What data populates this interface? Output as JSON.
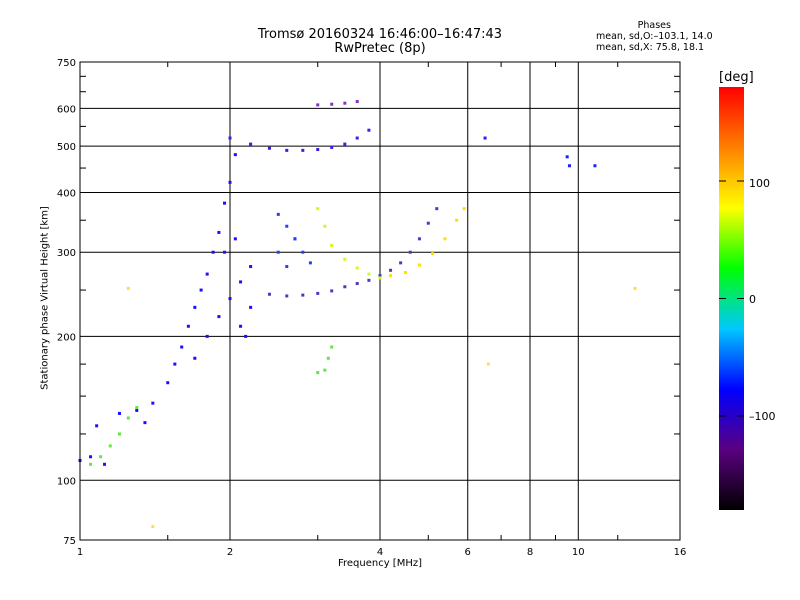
{
  "header": {
    "title_line1": "Tromsø 20160324 16:46:00–16:47:43",
    "title_line2": "RwPretec (8p)",
    "stats_heading": "Phases",
    "stats_o": "mean, sd,O:–103.1, 14.0",
    "stats_x": "mean, sd,X:  75.8, 18.1"
  },
  "colorbar": {
    "label": "[deg]",
    "ticks": [
      {
        "label": "100",
        "value": 100
      },
      {
        "label": "0",
        "value": 0
      },
      {
        "label": "–100",
        "value": -100
      }
    ],
    "range": [
      -180,
      180
    ],
    "colors": [
      "#000000",
      "#5a0080",
      "#0000ff",
      "#00c8ff",
      "#00ff00",
      "#ffff00",
      "#ff8000",
      "#ff0000"
    ]
  },
  "chart_data": {
    "type": "scatter",
    "title": "Tromsø 20160324 16:46:00–16:47:43",
    "subtitle": "RwPretec (8p)",
    "xlabel": "Frequency [MHz]",
    "ylabel": "Stationary phase Virtual Height [km]",
    "xscale": "log2",
    "yscale": "log",
    "xlim": [
      1,
      16
    ],
    "ylim": [
      75,
      750
    ],
    "xticks": [
      {
        "value": 1,
        "label": "1"
      },
      {
        "value": 2,
        "label": "2"
      },
      {
        "value": 4,
        "label": "4"
      },
      {
        "value": 6,
        "label": "6"
      },
      {
        "value": 8,
        "label": "8"
      },
      {
        "value": 10,
        "label": "10"
      },
      {
        "value": 16,
        "label": "16"
      }
    ],
    "yticks": [
      {
        "value": 75,
        "label": "75"
      },
      {
        "value": 100,
        "label": "100"
      },
      {
        "value": 200,
        "label": "200"
      },
      {
        "value": 300,
        "label": "300"
      },
      {
        "value": 400,
        "label": "400"
      },
      {
        "value": 500,
        "label": "500"
      },
      {
        "value": 600,
        "label": "600"
      },
      {
        "value": 750,
        "label": "750"
      }
    ],
    "grid": true,
    "color_variable": "phase [deg]",
    "series": [
      {
        "color": "#1a10ff",
        "points": [
          [
            1.0,
            110
          ],
          [
            1.05,
            112
          ],
          [
            1.08,
            130
          ],
          [
            1.12,
            108
          ],
          [
            1.2,
            138
          ],
          [
            1.3,
            140
          ],
          [
            1.35,
            132
          ],
          [
            1.4,
            145
          ],
          [
            1.5,
            160
          ],
          [
            1.55,
            175
          ],
          [
            1.6,
            190
          ],
          [
            1.65,
            210
          ],
          [
            1.7,
            230
          ],
          [
            1.75,
            250
          ],
          [
            1.8,
            270
          ],
          [
            1.85,
            300
          ],
          [
            1.9,
            330
          ],
          [
            1.95,
            380
          ],
          [
            2.0,
            420
          ],
          [
            2.05,
            480
          ],
          [
            1.7,
            180
          ],
          [
            1.8,
            200
          ],
          [
            1.9,
            220
          ],
          [
            2.0,
            240
          ],
          [
            2.1,
            260
          ],
          [
            2.2,
            280
          ],
          [
            1.95,
            300
          ],
          [
            2.05,
            320
          ],
          [
            2.15,
            200
          ],
          [
            2.1,
            210
          ],
          [
            2.2,
            230
          ]
        ]
      },
      {
        "color": "#3020e8",
        "points": [
          [
            2.0,
            520
          ],
          [
            2.2,
            505
          ],
          [
            2.4,
            495
          ],
          [
            2.6,
            490
          ],
          [
            2.8,
            490
          ],
          [
            3.0,
            492
          ],
          [
            3.2,
            497
          ],
          [
            3.4,
            505
          ],
          [
            3.6,
            520
          ],
          [
            3.8,
            540
          ]
        ]
      },
      {
        "color": "#4a3ac0",
        "points": [
          [
            2.4,
            245
          ],
          [
            2.6,
            243
          ],
          [
            2.8,
            244
          ],
          [
            3.0,
            246
          ],
          [
            3.2,
            249
          ],
          [
            3.4,
            254
          ],
          [
            3.6,
            258
          ],
          [
            3.8,
            262
          ],
          [
            4.0,
            268
          ],
          [
            4.2,
            275
          ],
          [
            4.4,
            285
          ],
          [
            4.6,
            300
          ],
          [
            4.8,
            320
          ],
          [
            5.0,
            345
          ],
          [
            5.2,
            370
          ]
        ]
      },
      {
        "color": "#2b3cff",
        "points": [
          [
            2.5,
            360
          ],
          [
            2.6,
            340
          ],
          [
            2.7,
            320
          ],
          [
            2.8,
            300
          ],
          [
            2.9,
            285
          ],
          [
            2.5,
            300
          ],
          [
            2.6,
            280
          ],
          [
            2.7,
            320
          ]
        ]
      },
      {
        "color": "#c8ff20",
        "points": [
          [
            3.0,
            370
          ],
          [
            3.1,
            340
          ],
          [
            3.2,
            310
          ],
          [
            3.4,
            290
          ],
          [
            3.6,
            278
          ],
          [
            3.8,
            270
          ],
          [
            4.0,
            265
          ]
        ]
      },
      {
        "color": "#ffe000",
        "points": [
          [
            4.2,
            268
          ],
          [
            4.5,
            272
          ],
          [
            4.8,
            282
          ],
          [
            5.1,
            298
          ],
          [
            5.4,
            320
          ],
          [
            5.7,
            350
          ],
          [
            5.9,
            370
          ]
        ]
      },
      {
        "color": "#60e840",
        "points": [
          [
            1.05,
            108
          ],
          [
            1.1,
            112
          ],
          [
            1.15,
            118
          ],
          [
            1.2,
            125
          ],
          [
            1.25,
            135
          ],
          [
            1.3,
            142
          ],
          [
            3.0,
            168
          ],
          [
            3.1,
            170
          ],
          [
            3.15,
            180
          ],
          [
            3.2,
            190
          ]
        ]
      },
      {
        "color": "#8a30c0",
        "points": [
          [
            3.0,
            610
          ],
          [
            3.2,
            612
          ],
          [
            3.4,
            615
          ],
          [
            3.6,
            620
          ]
        ]
      },
      {
        "color": "#1a20ff",
        "points": [
          [
            9.5,
            475
          ],
          [
            9.6,
            455
          ],
          [
            10.8,
            455
          ],
          [
            6.5,
            520
          ]
        ]
      },
      {
        "color": "#ffe040",
        "points": [
          [
            13.0,
            252
          ],
          [
            1.25,
            252
          ],
          [
            1.4,
            80
          ],
          [
            6.6,
            175
          ]
        ]
      }
    ]
  }
}
